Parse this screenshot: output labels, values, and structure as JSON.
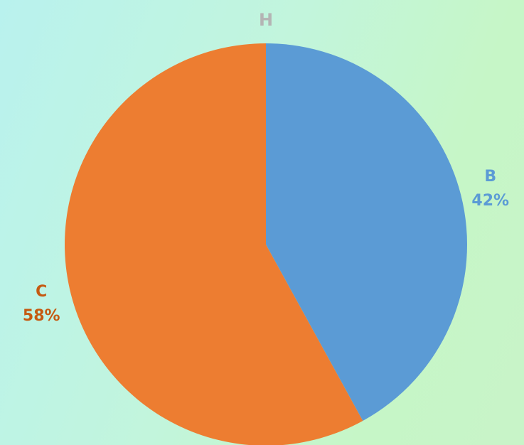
{
  "chart_data": {
    "type": "pie",
    "title": "H",
    "categories": [
      "B",
      "C"
    ],
    "values": [
      42,
      58
    ],
    "percent_labels": [
      "42%",
      "58%"
    ],
    "colors": [
      "#5b9bd5",
      "#ed7d31"
    ],
    "label_colors": [
      "#5b9bd5",
      "#c55a11"
    ],
    "title_color": "#b4b4b4",
    "start_angle_deg": 0,
    "direction": "clockwise",
    "legend": "none"
  }
}
